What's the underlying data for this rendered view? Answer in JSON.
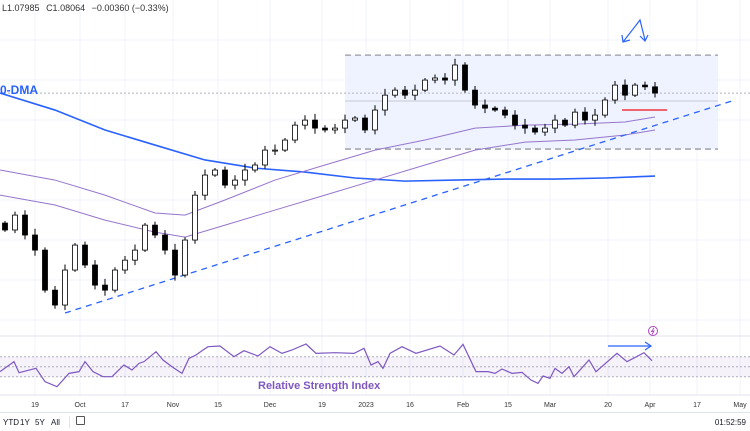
{
  "legend": {
    "low": "L1.07985",
    "close": "C1.08064",
    "change": "−0.00360 (−0.33%)"
  },
  "labels": {
    "dma": "0-DMA",
    "rsi": "Relative Strength Index"
  },
  "toolbar": {
    "ranges": [
      "YTD",
      "1Y",
      "5Y",
      "All"
    ],
    "calendar_icon": "calendar-icon",
    "clock": "01:52:59"
  },
  "colors": {
    "up": "#ffffff",
    "down": "#000000",
    "ma200": "#2962ff",
    "bands": "#9575cd",
    "rsi": "#7e57c2",
    "trend": "#2962ff",
    "support": "#f23645",
    "range_fill": "#eef3ff"
  },
  "chart_data": {
    "type": "candlestick",
    "ylim": [
      0.9439,
      1.1343
    ],
    "xlim": [
      -0.5,
      74.5
    ],
    "closes": [
      1.0016,
      1.0102,
      0.9987,
      0.99,
      0.9669,
      0.9583,
      0.9785,
      0.9929,
      0.9814,
      0.9698,
      0.9669,
      0.9785,
      0.9842,
      0.99,
      1.0044,
      0.9987,
      0.99,
      0.9756,
      0.9958,
      1.0217,
      1.0333,
      1.0362,
      1.0275,
      1.0304,
      1.0362,
      1.0391,
      1.0477,
      1.0477,
      1.0535,
      1.0621,
      1.065,
      1.0604,
      1.0593,
      1.0604,
      1.065,
      1.0662,
      1.0593,
      1.0708,
      1.0794,
      1.0823,
      1.0794,
      1.0823,
      1.0881,
      1.0893,
      1.0881,
      1.0968,
      1.0823,
      1.0737,
      1.0719,
      1.0708,
      1.0679,
      1.0621,
      1.0604,
      1.0581,
      1.0604,
      1.065,
      1.0621,
      1.0696,
      1.065,
      1.0679,
      1.0766,
      1.0852,
      1.0794,
      1.0852,
      1.0842,
      1.0806
    ],
    "ma200": [
      [
        -0.5,
        1.0806
      ],
      [
        5,
        1.0708
      ],
      [
        10,
        1.0593
      ],
      [
        15,
        1.0506
      ],
      [
        20,
        1.042
      ],
      [
        25,
        1.0373
      ],
      [
        30,
        1.035
      ],
      [
        35,
        1.0316
      ],
      [
        40,
        1.0298
      ],
      [
        45,
        1.0304
      ],
      [
        50,
        1.031
      ],
      [
        55,
        1.031
      ],
      [
        60,
        1.0316
      ],
      [
        65,
        1.0327
      ]
    ],
    "band_upper": [
      [
        -0.5,
        1.0362
      ],
      [
        5,
        1.0304
      ],
      [
        10,
        1.0217
      ],
      [
        15,
        1.0114
      ],
      [
        18,
        1.0102
      ],
      [
        22,
        1.0189
      ],
      [
        27,
        1.0304
      ],
      [
        32,
        1.0391
      ],
      [
        37,
        1.0477
      ],
      [
        42,
        1.0535
      ],
      [
        47,
        1.0604
      ],
      [
        52,
        1.0621
      ],
      [
        57,
        1.0627
      ],
      [
        62,
        1.0639
      ],
      [
        65,
        1.0668
      ]
    ],
    "band_lower": [
      [
        -0.5,
        1.0217
      ],
      [
        5,
        1.016
      ],
      [
        10,
        1.0073
      ],
      [
        15,
        1.0004
      ],
      [
        18,
        0.9975
      ],
      [
        22,
        1.0044
      ],
      [
        27,
        1.0131
      ],
      [
        32,
        1.0217
      ],
      [
        37,
        1.0304
      ],
      [
        42,
        1.0391
      ],
      [
        47,
        1.0477
      ],
      [
        52,
        1.0523
      ],
      [
        57,
        1.0535
      ],
      [
        62,
        1.0564
      ],
      [
        65,
        1.0593
      ]
    ],
    "last_price": 1.0806,
    "range_box": {
      "from": 34,
      "to": 71.3,
      "top": 1.1025,
      "bottom": 1.0483,
      "mid": 1.076
    },
    "support_line": {
      "from": 61.7,
      "to": 66.2,
      "price": 1.0708
    },
    "trendline": [
      [
        6,
        0.9537
      ],
      [
        73,
        1.0766
      ]
    ],
    "rsi": {
      "levels": [
        70,
        50,
        30
      ],
      "points": [
        [
          -0.5,
          40.1
        ],
        [
          0.9,
          60.1
        ],
        [
          1.4,
          38
        ],
        [
          3.1,
          46.7
        ],
        [
          4,
          20
        ],
        [
          5.2,
          10
        ],
        [
          6.4,
          36.7
        ],
        [
          7.4,
          40.1
        ],
        [
          8,
          60.1
        ],
        [
          8.8,
          40.1
        ],
        [
          9.8,
          30
        ],
        [
          10.7,
          30
        ],
        [
          11.2,
          40.1
        ],
        [
          11.9,
          53.4
        ],
        [
          12.7,
          43.4
        ],
        [
          13.4,
          56.7
        ],
        [
          13.9,
          60.1
        ],
        [
          15.1,
          80
        ],
        [
          15.8,
          63.4
        ],
        [
          16.7,
          50
        ],
        [
          17.7,
          36.7
        ],
        [
          18.4,
          66.7
        ],
        [
          19.1,
          73.4
        ],
        [
          19.8,
          83.4
        ],
        [
          20.3,
          90
        ],
        [
          21.5,
          91.4
        ],
        [
          22.9,
          70
        ],
        [
          23.9,
          82
        ],
        [
          25.3,
          71.4
        ],
        [
          26.5,
          90
        ],
        [
          27.7,
          76.7
        ],
        [
          28.7,
          83.4
        ],
        [
          30.1,
          95.4
        ],
        [
          31.1,
          76.7
        ],
        [
          33,
          78
        ],
        [
          34.9,
          76.7
        ],
        [
          35.9,
          86.7
        ],
        [
          36.6,
          53.4
        ],
        [
          37.3,
          60.1
        ],
        [
          37.8,
          46.7
        ],
        [
          38.5,
          76.7
        ],
        [
          39.7,
          90
        ],
        [
          41.1,
          76.7
        ],
        [
          43.5,
          91.4
        ],
        [
          44.9,
          73.4
        ],
        [
          45.8,
          94.7
        ],
        [
          47.1,
          40.1
        ],
        [
          48.3,
          40.1
        ],
        [
          49,
          36.7
        ],
        [
          49.7,
          45.4
        ],
        [
          50.7,
          36.7
        ],
        [
          51.7,
          38.7
        ],
        [
          52.6,
          23.3
        ],
        [
          53.3,
          16.7
        ],
        [
          53.8,
          31.4
        ],
        [
          54.5,
          26.7
        ],
        [
          55,
          46.7
        ],
        [
          55.7,
          36.7
        ],
        [
          56.4,
          50
        ],
        [
          56.9,
          30
        ],
        [
          58.4,
          63.4
        ],
        [
          59.1,
          40.1
        ],
        [
          61.2,
          76.7
        ],
        [
          62.2,
          60.1
        ],
        [
          63.9,
          78
        ],
        [
          64.7,
          62
        ]
      ]
    },
    "x_ticks": [
      {
        "label": "19",
        "i": 3
      },
      {
        "label": "Oct",
        "i": 7.5
      },
      {
        "label": "17",
        "i": 12
      },
      {
        "label": "Nov",
        "i": 16.8
      },
      {
        "label": "15",
        "i": 21.3
      },
      {
        "label": "Dec",
        "i": 26.5
      },
      {
        "label": "19",
        "i": 31.7
      },
      {
        "label": "2023",
        "i": 36.1
      },
      {
        "label": "16",
        "i": 40.5
      },
      {
        "label": "Feb",
        "i": 45.8
      },
      {
        "label": "15",
        "i": 50.3
      },
      {
        "label": "Mar",
        "i": 54.5
      },
      {
        "label": "20",
        "i": 60.3
      },
      {
        "label": "Apr",
        "i": 64.5
      },
      {
        "label": "17",
        "i": 69.2
      },
      {
        "label": "May",
        "i": 73.5
      }
    ]
  }
}
